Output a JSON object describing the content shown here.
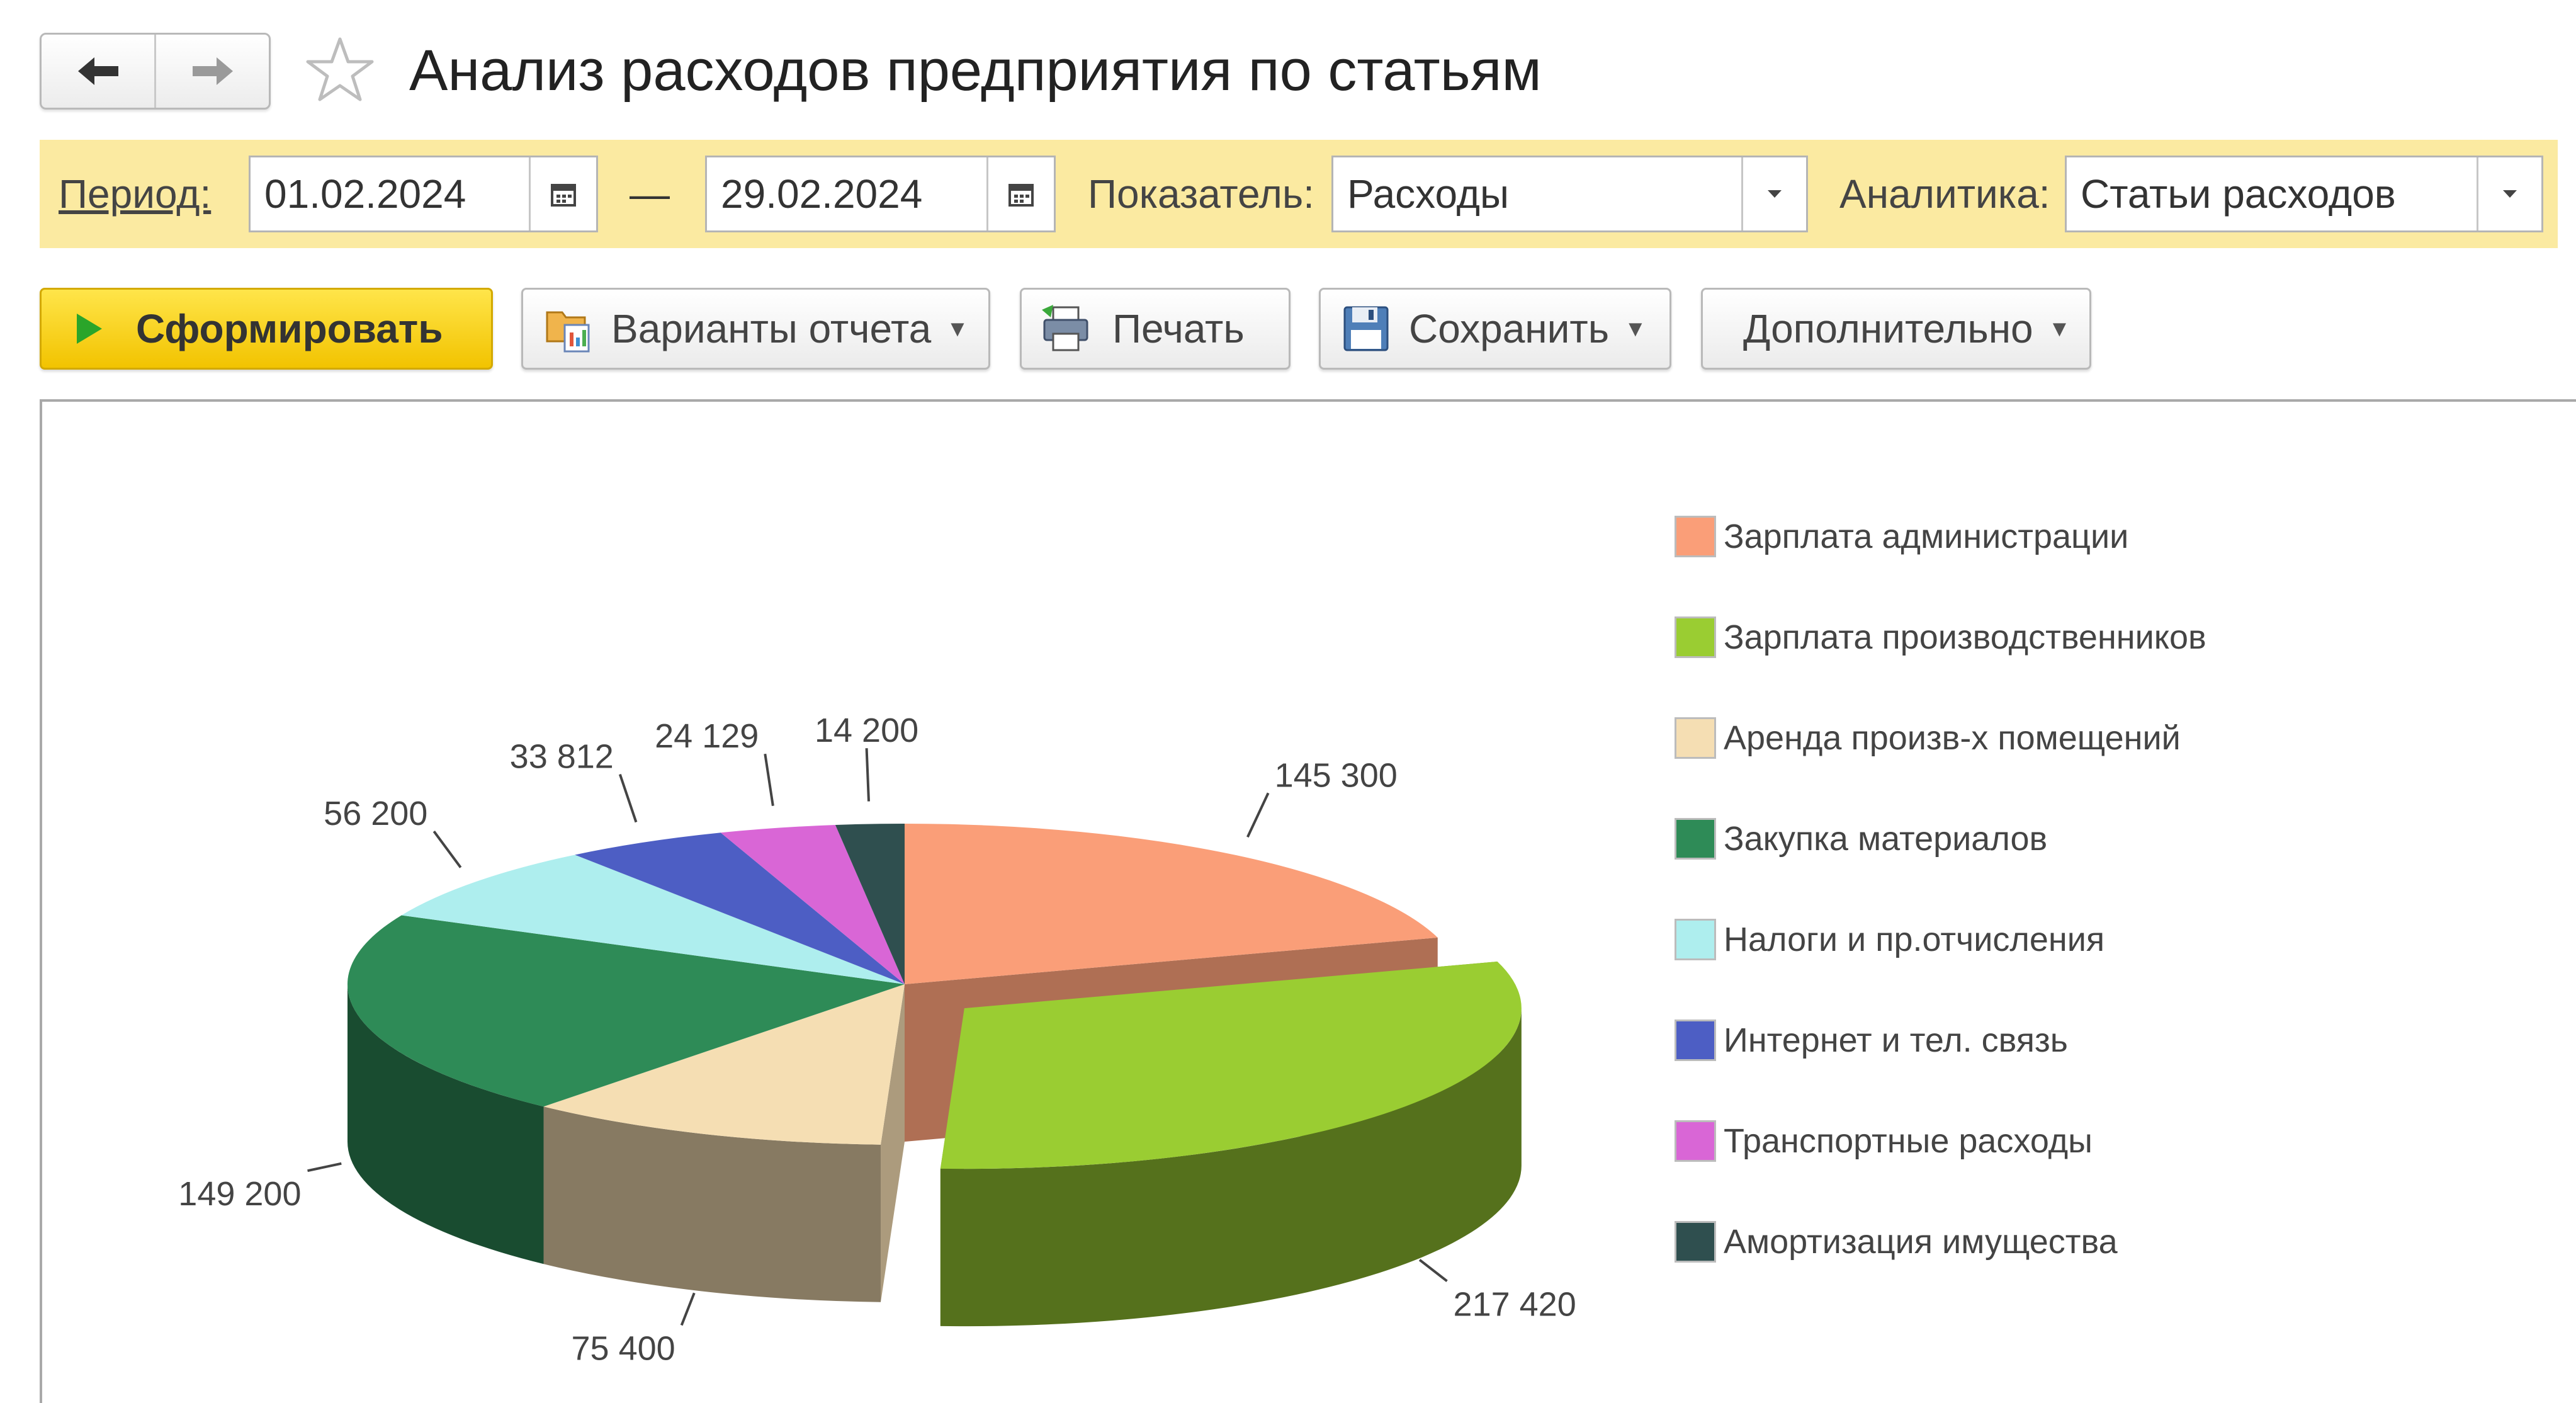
{
  "header": {
    "title": "Анализ расходов предприятия по статьям",
    "back_icon": "arrow-left-icon",
    "forward_icon": "arrow-right-icon",
    "favorite_icon": "star-icon"
  },
  "filters": {
    "period_label": "Период:",
    "date_from": "01.02.2024",
    "date_separator": "—",
    "date_to": "29.02.2024",
    "indicator_label": "Показатель:",
    "indicator_value": "Расходы",
    "analytics_label": "Аналитика:",
    "analytics_value": "Статьи расходов",
    "panel_color": "#fbeaa1"
  },
  "toolbar": {
    "generate_label": "Сформировать",
    "variants_label": "Варианты отчета",
    "print_label": "Печать",
    "save_label": "Сохранить",
    "more_label": "Дополнительно"
  },
  "chart_data": {
    "type": "pie",
    "title": "",
    "legend_position": "right",
    "categories": [
      "Зарплата администрации",
      "Зарплата производственников",
      "Аренда произв-х помещений",
      "Закупка материалов",
      "Налоги и пр.отчисления",
      "Интернет и тел. связь",
      "Транспортные расходы",
      "Амортизация имущества"
    ],
    "values": [
      145300,
      217420,
      75400,
      149200,
      56200,
      33812,
      24129,
      14200
    ],
    "value_labels": [
      "145 300",
      "217 420",
      "75 400",
      "149 200",
      "56 200",
      "33 812",
      "24 129",
      "14 200"
    ],
    "colors": [
      "#fa9e78",
      "#9acd32",
      "#f5deb3",
      "#2e8b57",
      "#aeeeee",
      "#4d5ec4",
      "#d966d6",
      "#2f4f4f"
    ],
    "exploded": [
      "Зарплата производственников"
    ]
  }
}
